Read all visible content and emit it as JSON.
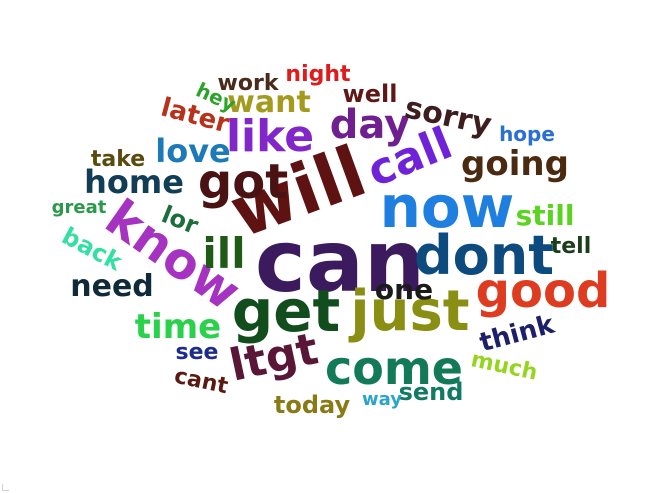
{
  "word_cloud": {
    "words": [
      {
        "text": "can",
        "color": "#3b1a5e"
      },
      {
        "text": "will",
        "color": "#5e1212"
      },
      {
        "text": "now",
        "color": "#1f7fe0"
      },
      {
        "text": "just",
        "color": "#8a8f14"
      },
      {
        "text": "get",
        "color": "#114d1d"
      },
      {
        "text": "dont",
        "color": "#0d4a7e"
      },
      {
        "text": "know",
        "color": "#a532c0"
      },
      {
        "text": "good",
        "color": "#de3c21"
      },
      {
        "text": "got",
        "color": "#4a1212"
      },
      {
        "text": "come",
        "color": "#127a56"
      },
      {
        "text": "ltgt",
        "color": "#591636"
      },
      {
        "text": "like",
        "color": "#8225c9"
      },
      {
        "text": "call",
        "color": "#6f22d8"
      },
      {
        "text": "ill",
        "color": "#1f5b16"
      },
      {
        "text": "day",
        "color": "#6f1f8f"
      },
      {
        "text": "going",
        "color": "#4a2a11"
      },
      {
        "text": "time",
        "color": "#2ad14a"
      },
      {
        "text": "home",
        "color": "#113e55"
      },
      {
        "text": "love",
        "color": "#1c7ab8"
      },
      {
        "text": "want",
        "color": "#a49a1d"
      },
      {
        "text": "sorry",
        "color": "#3d1d1d"
      },
      {
        "text": "one",
        "color": "#1b1b1b"
      },
      {
        "text": "need",
        "color": "#0f2b3a"
      },
      {
        "text": "today",
        "color": "#8a7a16"
      },
      {
        "text": "think",
        "color": "#1d1f6b"
      },
      {
        "text": "send",
        "color": "#127a64"
      },
      {
        "text": "still",
        "color": "#5bd321"
      },
      {
        "text": "later",
        "color": "#b8311a"
      },
      {
        "text": "well",
        "color": "#5e1818"
      },
      {
        "text": "back",
        "color": "#33e0a1"
      },
      {
        "text": "lor",
        "color": "#1b6e3c"
      },
      {
        "text": "see",
        "color": "#1d2b8a"
      },
      {
        "text": "tell",
        "color": "#1a3d1a"
      },
      {
        "text": "much",
        "color": "#96d51e"
      },
      {
        "text": "cant",
        "color": "#591a12"
      },
      {
        "text": "take",
        "color": "#5b4a0e"
      },
      {
        "text": "hope",
        "color": "#2a6fd1"
      },
      {
        "text": "night",
        "color": "#e01b1b"
      },
      {
        "text": "work",
        "color": "#4a2a1a"
      },
      {
        "text": "hey",
        "color": "#2aa52a"
      },
      {
        "text": "great",
        "color": "#2a9a4a"
      },
      {
        "text": "way",
        "color": "#2aa5c9"
      }
    ]
  }
}
